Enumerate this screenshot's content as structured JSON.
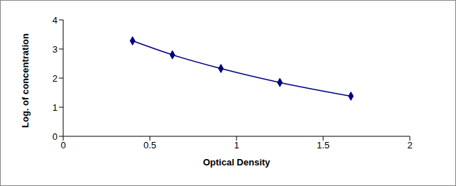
{
  "chart_data": {
    "type": "line",
    "x_label": "Optical Density",
    "y_label": "Log. of concentration",
    "x": [
      0.4,
      0.63,
      0.91,
      1.25,
      1.66
    ],
    "values": [
      3.28,
      2.8,
      2.33,
      1.85,
      1.38
    ],
    "color": "#000080",
    "marker": "diamond",
    "xlim": [
      0,
      2
    ],
    "xticks": [
      0,
      0.5,
      1,
      1.5,
      2
    ],
    "ylim": [
      0,
      4
    ],
    "yticks": [
      0,
      1,
      2,
      3,
      4
    ],
    "grid": false
  }
}
